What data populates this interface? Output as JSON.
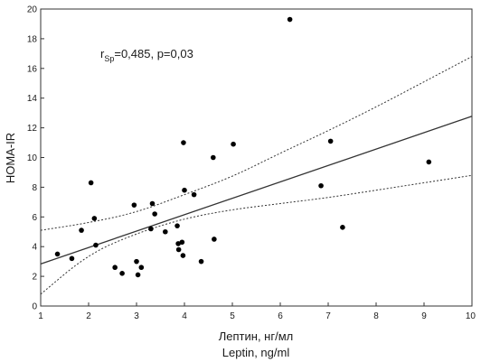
{
  "chart_data": {
    "type": "scatter",
    "xlabel_lines": [
      "Лептин, нг/мл",
      "Leptin, ng/ml"
    ],
    "ylabel": "HOMA-IR",
    "xlim": [
      1,
      10
    ],
    "ylim": [
      0,
      20
    ],
    "xticks": [
      1,
      2,
      3,
      4,
      5,
      6,
      7,
      8,
      9,
      10
    ],
    "xtick_labels": [
      "1",
      "2",
      "3",
      "4",
      "5",
      "6",
      "7",
      "8",
      "9",
      "10"
    ],
    "yticks": [
      0,
      2,
      4,
      6,
      8,
      10,
      12,
      14,
      16,
      18,
      20
    ],
    "ytick_labels": [
      "0",
      "2",
      "4",
      "6",
      "8",
      "10",
      "12",
      "14",
      "16",
      "18",
      "20"
    ],
    "grid": false,
    "annotation": {
      "r_symbol": "r",
      "r_subscript": "Sp",
      "rest": "=0,485, p=0,03"
    },
    "points": [
      {
        "x": 1.35,
        "y": 3.5
      },
      {
        "x": 1.65,
        "y": 3.2
      },
      {
        "x": 1.85,
        "y": 5.1
      },
      {
        "x": 2.05,
        "y": 8.3
      },
      {
        "x": 2.12,
        "y": 5.9
      },
      {
        "x": 2.15,
        "y": 4.1
      },
      {
        "x": 2.55,
        "y": 2.6
      },
      {
        "x": 2.7,
        "y": 2.2
      },
      {
        "x": 2.95,
        "y": 6.8
      },
      {
        "x": 3.0,
        "y": 3.0
      },
      {
        "x": 3.03,
        "y": 2.1
      },
      {
        "x": 3.1,
        "y": 2.6
      },
      {
        "x": 3.3,
        "y": 5.2
      },
      {
        "x": 3.33,
        "y": 6.9
      },
      {
        "x": 3.38,
        "y": 6.2
      },
      {
        "x": 3.6,
        "y": 5.0
      },
      {
        "x": 3.85,
        "y": 5.4
      },
      {
        "x": 3.87,
        "y": 4.2
      },
      {
        "x": 3.88,
        "y": 3.8
      },
      {
        "x": 3.95,
        "y": 4.3
      },
      {
        "x": 3.97,
        "y": 3.4
      },
      {
        "x": 3.98,
        "y": 11.0
      },
      {
        "x": 4.0,
        "y": 7.8
      },
      {
        "x": 4.2,
        "y": 7.5
      },
      {
        "x": 4.35,
        "y": 3.0
      },
      {
        "x": 4.6,
        "y": 10.0
      },
      {
        "x": 4.62,
        "y": 4.5
      },
      {
        "x": 5.02,
        "y": 10.9
      },
      {
        "x": 6.2,
        "y": 19.3
      },
      {
        "x": 6.85,
        "y": 8.1
      },
      {
        "x": 7.05,
        "y": 11.1
      },
      {
        "x": 7.3,
        "y": 5.3
      },
      {
        "x": 9.1,
        "y": 9.7
      }
    ],
    "regression": {
      "intercept": 1.73,
      "slope": 1.105
    },
    "confidence_band": {
      "x": [
        1,
        2,
        3,
        4,
        5,
        6,
        7,
        8,
        9,
        10
      ],
      "upper": [
        5.1,
        5.6,
        6.3,
        7.5,
        8.7,
        10.3,
        11.8,
        13.4,
        15.1,
        16.8
      ],
      "lower": [
        0.8,
        3.5,
        4.9,
        5.9,
        6.5,
        6.9,
        7.3,
        7.8,
        8.3,
        8.8
      ]
    }
  }
}
